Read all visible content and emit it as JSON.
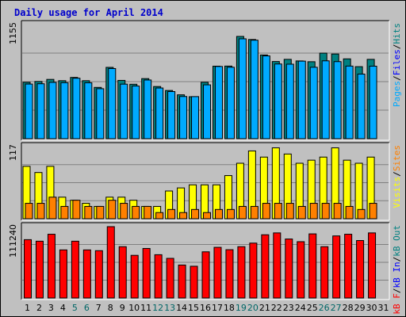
{
  "chart_data": {
    "title": "Daily usage for April 2014",
    "days": [
      "1",
      "2",
      "3",
      "4",
      "5",
      "6",
      "7",
      "8",
      "9",
      "10",
      "11",
      "12",
      "13",
      "14",
      "15",
      "16",
      "17",
      "18",
      "19",
      "20",
      "21",
      "22",
      "23",
      "24",
      "25",
      "26",
      "27",
      "28",
      "29",
      "30",
      "31"
    ],
    "weekend_days": [
      5,
      6,
      12,
      13,
      19,
      20,
      26,
      27
    ],
    "day_label_colors": {
      "weekday": "#000000",
      "weekend": "#006666"
    },
    "panels": [
      {
        "type": "bar",
        "max_label": "1155",
        "ymax": 1155,
        "series_labels": [
          {
            "text": "Pages",
            "color": "#00aaff"
          },
          {
            "text": "/",
            "color": "#000000"
          },
          {
            "text": "Files",
            "color": "#0000ff"
          },
          {
            "text": "/",
            "color": "#000000"
          },
          {
            "text": "Hits",
            "color": "#008080"
          }
        ],
        "series": [
          {
            "key": "hits",
            "color": "#008080",
            "values": [
              571,
              579,
              600,
              587,
              620,
              587,
              519,
              722,
              590,
              551,
              608,
              528,
              488,
              444,
              425,
              571,
              734,
              735,
              1035,
              1004,
              847,
              781,
              803,
              787,
              779,
              866,
              857,
              808,
              729,
              803
            ]
          },
          {
            "key": "files",
            "color": "#00aaff",
            "values": [
              553,
              556,
              570,
              567,
              612,
              566,
              506,
              710,
              552,
              533,
              594,
              513,
              477,
              427,
              426,
              545,
              731,
              723,
              1011,
              997,
              838,
              756,
              754,
              785,
              723,
              788,
              780,
              735,
              654,
              734
            ]
          }
        ]
      },
      {
        "type": "bar",
        "max_label": "117",
        "ymax": 117,
        "series_labels": [
          {
            "text": "Visits",
            "color": "#ffff00"
          },
          {
            "text": "/",
            "color": "#000000"
          },
          {
            "text": "Sites",
            "color": "#ff8000"
          }
        ],
        "series": [
          {
            "key": "visits",
            "color": "#ffff00",
            "values": [
              85,
              75,
              85,
              35,
              30,
              25,
              20,
              35,
              35,
              30,
              20,
              20,
              45,
              50,
              55,
              55,
              55,
              70,
              90,
              110,
              100,
              115,
              105,
              90,
              95,
              100,
              115,
              95,
              90,
              100
            ]
          },
          {
            "key": "sites",
            "color": "#ff8000",
            "values": [
              25,
              25,
              35,
              20,
              30,
              20,
              20,
              30,
              25,
              20,
              20,
              10,
              15,
              10,
              15,
              10,
              15,
              15,
              20,
              20,
              25,
              25,
              25,
              20,
              25,
              25,
              25,
              20,
              15,
              25
            ]
          }
        ]
      },
      {
        "type": "bar",
        "max_label": "111240",
        "ymax": 111240,
        "series_labels": [
          {
            "text": "kB F",
            "color": "#ff0000"
          },
          {
            "text": "/",
            "color": "#000000"
          },
          {
            "text": "kB In",
            "color": "#0000ff"
          },
          {
            "text": "/",
            "color": "#000000"
          },
          {
            "text": "kB Out",
            "color": "#008080"
          }
        ],
        "series": [
          {
            "key": "kbf",
            "color": "#ff0000",
            "values": [
              90980,
              88560,
              99440,
              75000,
              88560,
              75000,
              73800,
              111240,
              80000,
              66500,
              77220,
              67500,
              61800,
              51400,
              49500,
              72000,
              79000,
              75300,
              80000,
              85600,
              98600,
              101500,
              92000,
              87800,
              100000,
              80000,
              96800,
              99440,
              89600,
              101500
            ]
          }
        ]
      }
    ]
  }
}
